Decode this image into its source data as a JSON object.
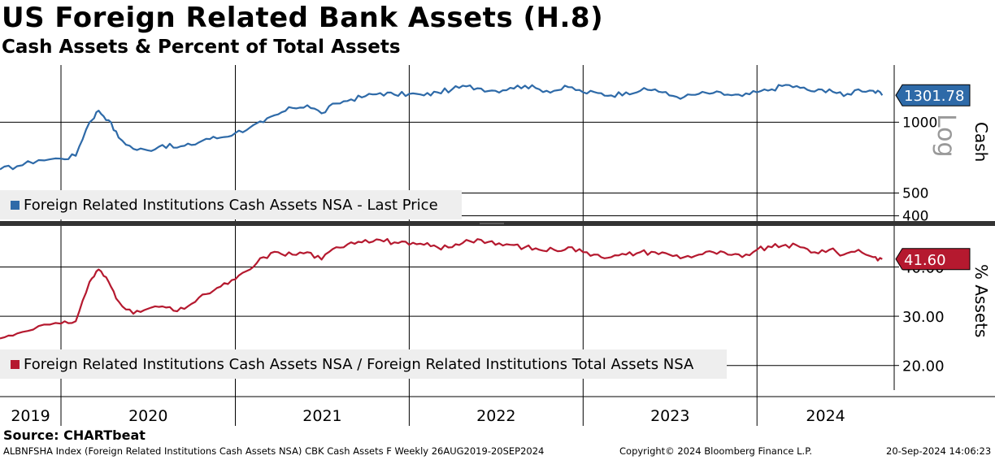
{
  "header": {
    "title": "US Foreign Related Bank Assets (H.8)",
    "subtitle": "Cash Assets & Percent of Total Assets"
  },
  "footer": {
    "source": "Source: CHARTbeat",
    "index_info": "ALBNFSHA Index (Foreign Related Institutions Cash Assets NSA) CBK Cash Assets F  Weekly 26AUG2019-20SEP2024",
    "copyright": "Copyright© 2024 Bloomberg Finance L.P.",
    "timestamp": "20-Sep-2024 14:06:23"
  },
  "colors": {
    "cash_series": "#2e6aa8",
    "ratio_series": "#b5192f",
    "legend_bg": "#eeeeee",
    "divider": "#333333"
  },
  "chart_data": [
    {
      "type": "line",
      "panel": "top",
      "ylabel": "Cash",
      "scale_label": "Log",
      "yscale": "log",
      "ylim": [
        380,
        1750
      ],
      "ytick_labels": [
        "1000",
        "500",
        "400"
      ],
      "ytick_values": [
        1000,
        500,
        400
      ],
      "grid": true,
      "legend_placement": "bottom-left",
      "last_value_label": "1301.78",
      "series": [
        {
          "name": "Foreign Related Institutions Cash Assets NSA - Last Price",
          "x": [
            "2019-08-26",
            "2019-10-01",
            "2019-11-15",
            "2020-01-01",
            "2020-02-01",
            "2020-03-01",
            "2020-03-20",
            "2020-04-10",
            "2020-05-01",
            "2020-06-01",
            "2020-07-01",
            "2020-08-01",
            "2020-09-01",
            "2020-10-01",
            "2020-11-01",
            "2020-12-01",
            "2021-01-01",
            "2021-02-01",
            "2021-03-01",
            "2021-04-01",
            "2021-05-01",
            "2021-06-01",
            "2021-07-01",
            "2021-08-01",
            "2021-09-01",
            "2021-10-01",
            "2021-11-01",
            "2021-12-01",
            "2022-01-01",
            "2022-02-01",
            "2022-03-01",
            "2022-04-01",
            "2022-05-01",
            "2022-06-01",
            "2022-07-01",
            "2022-08-01",
            "2022-09-01",
            "2022-10-01",
            "2022-11-01",
            "2022-12-01",
            "2023-01-01",
            "2023-02-01",
            "2023-03-01",
            "2023-04-01",
            "2023-05-01",
            "2023-06-01",
            "2023-07-01",
            "2023-08-01",
            "2023-09-01",
            "2023-10-01",
            "2023-11-01",
            "2023-12-01",
            "2024-01-01",
            "2024-02-01",
            "2024-03-01",
            "2024-04-01",
            "2024-05-01",
            "2024-06-01",
            "2024-07-01",
            "2024-08-01",
            "2024-09-01",
            "2024-09-20"
          ],
          "values": [
            630,
            650,
            690,
            700,
            720,
            1000,
            1120,
            1020,
            860,
            770,
            760,
            800,
            780,
            800,
            850,
            860,
            900,
            950,
            1000,
            1080,
            1150,
            1180,
            1090,
            1200,
            1250,
            1290,
            1330,
            1310,
            1320,
            1300,
            1340,
            1380,
            1420,
            1390,
            1360,
            1400,
            1430,
            1380,
            1360,
            1410,
            1340,
            1330,
            1300,
            1340,
            1360,
            1380,
            1300,
            1280,
            1320,
            1330,
            1310,
            1290,
            1340,
            1380,
            1440,
            1400,
            1350,
            1380,
            1290,
            1380,
            1360,
            1301.78
          ]
        }
      ]
    },
    {
      "type": "line",
      "panel": "bottom",
      "ylabel": "% Assets",
      "ylim": [
        15,
        48
      ],
      "ytick_labels": [
        "40.00",
        "30.00",
        "20.00"
      ],
      "ytick_values": [
        40,
        30,
        20
      ],
      "grid": true,
      "legend_placement": "bottom-left",
      "last_value_label": "41.60",
      "series": [
        {
          "name": "Foreign Related Institutions Cash Assets NSA / Foreign Related Institutions Total Assets NSA",
          "x": [
            "2019-08-26",
            "2019-10-01",
            "2019-11-15",
            "2020-01-01",
            "2020-02-01",
            "2020-03-01",
            "2020-03-20",
            "2020-04-10",
            "2020-05-01",
            "2020-06-01",
            "2020-07-01",
            "2020-08-01",
            "2020-09-01",
            "2020-10-01",
            "2020-11-01",
            "2020-12-01",
            "2021-01-01",
            "2021-02-01",
            "2021-03-01",
            "2021-04-01",
            "2021-05-01",
            "2021-06-01",
            "2021-07-01",
            "2021-08-01",
            "2021-09-01",
            "2021-10-01",
            "2021-11-01",
            "2021-12-01",
            "2022-01-01",
            "2022-02-01",
            "2022-03-01",
            "2022-04-01",
            "2022-05-01",
            "2022-06-01",
            "2022-07-01",
            "2022-08-01",
            "2022-09-01",
            "2022-10-01",
            "2022-11-01",
            "2022-12-01",
            "2023-01-01",
            "2023-02-01",
            "2023-03-01",
            "2023-04-01",
            "2023-05-01",
            "2023-06-01",
            "2023-07-01",
            "2023-08-01",
            "2023-09-01",
            "2023-10-01",
            "2023-11-01",
            "2023-12-01",
            "2024-01-01",
            "2024-02-01",
            "2024-03-01",
            "2024-04-01",
            "2024-05-01",
            "2024-06-01",
            "2024-07-01",
            "2024-08-01",
            "2024-09-01",
            "2024-09-20"
          ],
          "values": [
            25.5,
            26.5,
            28.0,
            28.5,
            29.0,
            37.0,
            39.5,
            37.0,
            33.0,
            30.5,
            31.5,
            32.0,
            31.0,
            32.5,
            34.5,
            36.0,
            37.5,
            39.5,
            42.0,
            43.0,
            42.5,
            43.0,
            41.5,
            44.0,
            45.0,
            45.5,
            45.5,
            45.0,
            44.5,
            44.5,
            44.0,
            44.0,
            45.5,
            45.5,
            44.5,
            44.5,
            44.0,
            43.5,
            43.5,
            44.0,
            43.0,
            42.5,
            42.0,
            42.5,
            43.0,
            43.0,
            42.5,
            42.0,
            42.5,
            43.0,
            42.5,
            42.0,
            43.5,
            44.0,
            44.5,
            44.0,
            43.0,
            43.5,
            42.5,
            43.5,
            42.0,
            41.6
          ]
        }
      ]
    }
  ],
  "x_axis": {
    "year_labels": [
      "2019",
      "2020",
      "2021",
      "2022",
      "2023",
      "2024"
    ],
    "range": [
      "2019-08-26",
      "2024-09-20"
    ]
  }
}
